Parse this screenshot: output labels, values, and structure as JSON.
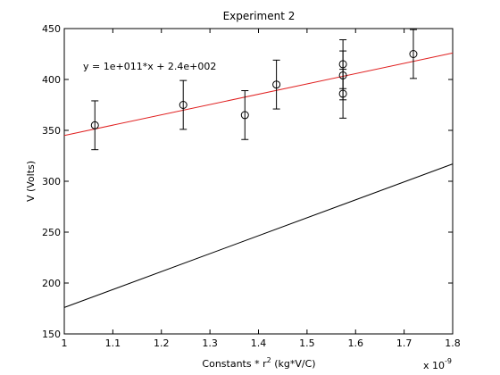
{
  "chart_data": {
    "type": "scatter",
    "title": "Experiment 2",
    "xlabel_pre": "Constants * r",
    "xlabel_sup": "2",
    "xlabel_post": " (kg*V/C)",
    "ylabel": "V (Volts)",
    "x_multiplier_base": "x 10",
    "x_multiplier_exp": "-9",
    "xlim": [
      1.0,
      1.8
    ],
    "ylim": [
      150,
      450
    ],
    "xticks": [
      1,
      1.1,
      1.2,
      1.3,
      1.4,
      1.5,
      1.6,
      1.7,
      1.8
    ],
    "xtick_labels": [
      "1",
      "1.1",
      "1.2",
      "1.3",
      "1.4",
      "1.5",
      "1.6",
      "1.7",
      "1.8"
    ],
    "yticks": [
      150,
      200,
      250,
      300,
      350,
      400,
      450
    ],
    "ytick_labels": [
      "150",
      "200",
      "250",
      "300",
      "350",
      "400",
      "450"
    ],
    "grid": false,
    "points": [
      {
        "x": 1.063,
        "y": 355,
        "err": 24
      },
      {
        "x": 1.245,
        "y": 375,
        "err": 24
      },
      {
        "x": 1.372,
        "y": 365,
        "err": 24
      },
      {
        "x": 1.437,
        "y": 395,
        "err": 24
      },
      {
        "x": 1.574,
        "y": 386,
        "err": 24
      },
      {
        "x": 1.574,
        "y": 404,
        "err": 24
      },
      {
        "x": 1.574,
        "y": 415,
        "err": 24
      },
      {
        "x": 1.719,
        "y": 425,
        "err": 24
      }
    ],
    "lines": [
      {
        "color": "#e02020",
        "x": [
          1.0,
          1.8
        ],
        "y": [
          345,
          426
        ]
      },
      {
        "color": "#000000",
        "x": [
          1.0,
          1.8
        ],
        "y": [
          176,
          317
        ]
      }
    ],
    "annotation": "y = 1e+011*x + 2.4e+002"
  }
}
